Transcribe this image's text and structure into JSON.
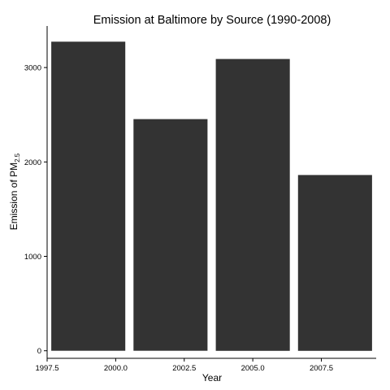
{
  "chart_data": {
    "type": "bar",
    "title": "Emission at Baltimore by Source (1990-2008)",
    "xlabel": "Year",
    "ylabel_main": "Emission of PM",
    "ylabel_sub": "2.5",
    "x": [
      1999,
      2002,
      2005,
      2008
    ],
    "values": [
      3274,
      2454,
      3091,
      1862
    ],
    "bar_width": 2.7,
    "xlim": [
      1997.5,
      2009.5
    ],
    "ylim": [
      -80,
      3440
    ],
    "x_ticks": [
      1997.5,
      2000.0,
      2002.5,
      2005.0,
      2007.5
    ],
    "x_tick_labels": [
      "1997.5",
      "2000.0",
      "2002.5",
      "2005.0",
      "2007.5"
    ],
    "y_ticks": [
      0,
      1000,
      2000,
      3000
    ],
    "y_tick_labels": [
      "0",
      "1000",
      "2000",
      "3000"
    ],
    "bar_color": "#333333",
    "grid": false,
    "legend": "none"
  }
}
